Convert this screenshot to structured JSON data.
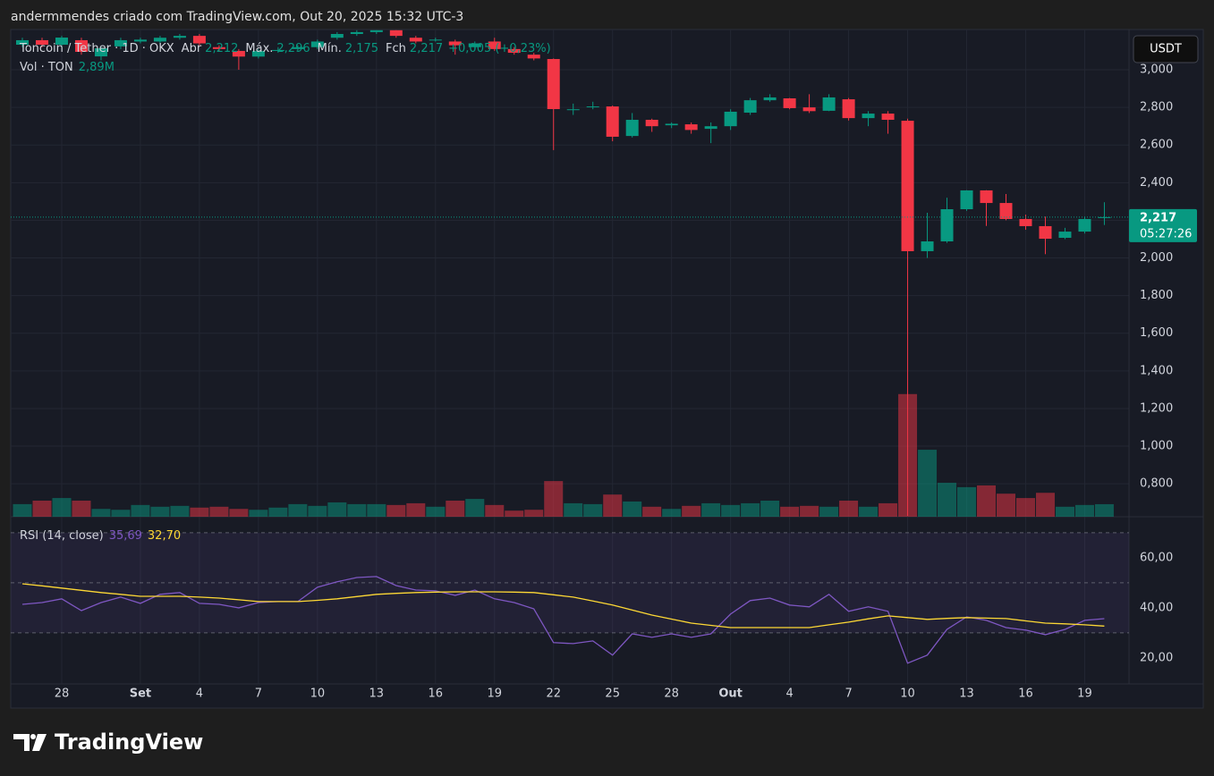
{
  "header": {
    "text": "andermmendes criado com TradingView.com, Out 20, 2025 15:32 UTC-3"
  },
  "footer": {
    "brand": "TradingView"
  },
  "chart_data": [
    {
      "type": "candlestick",
      "legend": {
        "symbol": "Toncoin / Tether · 1D · OKX",
        "open_label": "Abr",
        "open": "2,212",
        "high_label": "Máx.",
        "high": "2,296",
        "low_label": "Mín.",
        "low": "2,175",
        "close_label": "Fch",
        "close": "2,217",
        "change": "+0,005 (+0,23%)"
      },
      "currency": "USDT",
      "up_color": "#089981",
      "down_color": "#f23645",
      "grid": true,
      "categories": [
        null,
        null,
        "28",
        null,
        null,
        null,
        "Set",
        null,
        null,
        "4",
        null,
        null,
        "7",
        null,
        null,
        "10",
        null,
        null,
        "13",
        null,
        null,
        "16",
        null,
        null,
        "19",
        null,
        null,
        "22",
        null,
        null,
        "25",
        null,
        null,
        "28",
        null,
        null,
        "Out",
        null,
        null,
        "4",
        null,
        null,
        "7",
        null,
        null,
        "10",
        null,
        null,
        "13",
        null,
        null,
        "16",
        null,
        null,
        "19",
        null
      ],
      "open": [
        3.133,
        3.157,
        3.133,
        3.157,
        3.071,
        3.124,
        3.15,
        3.15,
        3.17,
        3.18,
        3.12,
        3.1,
        3.07,
        3.1,
        3.11,
        3.12,
        3.17,
        3.19,
        3.2,
        3.21,
        3.17,
        3.16,
        3.15,
        3.12,
        3.15,
        3.11,
        3.08,
        3.057,
        2.79,
        2.805,
        2.805,
        2.648,
        2.734,
        2.705,
        2.71,
        2.686,
        2.7,
        2.772,
        2.838,
        2.848,
        2.8,
        2.782,
        2.843,
        2.743,
        2.767,
        2.729,
        2.036,
        2.088,
        2.259,
        2.359,
        2.292,
        2.207,
        2.169,
        2.107,
        2.14,
        2.212
      ],
      "high": [
        3.17,
        3.17,
        3.18,
        3.17,
        3.12,
        3.17,
        3.17,
        3.18,
        3.19,
        3.19,
        3.13,
        3.11,
        3.11,
        3.12,
        3.13,
        3.16,
        3.2,
        3.21,
        3.21,
        3.21,
        3.18,
        3.17,
        3.16,
        3.15,
        3.17,
        3.12,
        3.09,
        3.06,
        2.82,
        2.83,
        2.81,
        2.77,
        2.74,
        2.72,
        2.72,
        2.72,
        2.79,
        2.85,
        2.87,
        2.85,
        2.87,
        2.87,
        2.85,
        2.78,
        2.78,
        2.74,
        2.24,
        2.32,
        2.36,
        2.36,
        2.34,
        2.23,
        2.22,
        2.16,
        2.22,
        2.296
      ],
      "low": [
        3.12,
        3.12,
        3.12,
        3.08,
        3.05,
        3.11,
        3.14,
        3.14,
        3.16,
        3.13,
        3.1,
        3.0,
        3.06,
        3.09,
        3.1,
        3.11,
        3.16,
        3.18,
        3.19,
        3.17,
        3.14,
        3.15,
        3.08,
        3.11,
        3.1,
        3.08,
        3.05,
        2.573,
        2.76,
        2.79,
        2.62,
        2.64,
        2.67,
        2.69,
        2.66,
        2.61,
        2.68,
        2.76,
        2.83,
        2.79,
        2.77,
        2.78,
        2.73,
        2.7,
        2.66,
        0.63,
        2.0,
        2.08,
        2.25,
        2.17,
        2.2,
        2.15,
        2.02,
        2.1,
        2.13,
        2.175
      ],
      "close": [
        3.157,
        3.133,
        3.171,
        3.095,
        3.114,
        3.157,
        3.16,
        3.17,
        3.18,
        3.14,
        3.11,
        3.07,
        3.1,
        3.105,
        3.12,
        3.15,
        3.19,
        3.2,
        3.21,
        3.18,
        3.15,
        3.16,
        3.13,
        3.14,
        3.11,
        3.09,
        3.06,
        2.791,
        2.79,
        2.805,
        2.644,
        2.734,
        2.7,
        2.713,
        2.68,
        2.7,
        2.777,
        2.838,
        2.853,
        2.796,
        2.78,
        2.853,
        2.743,
        2.767,
        2.734,
        2.036,
        2.088,
        2.259,
        2.359,
        2.292,
        2.207,
        2.169,
        2.102,
        2.14,
        2.207,
        2.217
      ],
      "ylim": [
        0.625,
        3.2138
      ],
      "yticks": [
        {
          "value": 3.0,
          "label": "3,000"
        },
        {
          "value": 2.8,
          "label": "2,800"
        },
        {
          "value": 2.6,
          "label": "2,600"
        },
        {
          "value": 2.4,
          "label": "2,400"
        },
        {
          "value": 2.2,
          "label": "2,200"
        },
        {
          "value": 2.0,
          "label": "2,000"
        },
        {
          "value": 1.8,
          "label": "1,800"
        },
        {
          "value": 1.6,
          "label": "1,600"
        },
        {
          "value": 1.4,
          "label": "1,400"
        },
        {
          "value": 1.2,
          "label": "1,200"
        },
        {
          "value": 1.0,
          "label": "1,000"
        },
        {
          "value": 0.8,
          "label": "0,800"
        }
      ],
      "last_price": {
        "value": 2.217,
        "label": "2,217"
      },
      "countdown": "05:27:26",
      "volume": {
        "name": "Vol · TON",
        "last_label": "2,89M",
        "ylim": [
          0,
          112
        ],
        "values": [
          2.9,
          3.7,
          4.3,
          3.7,
          1.8,
          1.6,
          2.7,
          2.3,
          2.5,
          2.1,
          2.3,
          1.8,
          1.6,
          2.1,
          2.9,
          2.5,
          3.3,
          2.9,
          2.9,
          2.7,
          3.1,
          2.3,
          3.7,
          4.1,
          2.7,
          1.4,
          1.6,
          8.2,
          3.1,
          2.9,
          5.1,
          3.5,
          2.3,
          1.8,
          2.5,
          3.1,
          2.7,
          3.1,
          3.7,
          2.3,
          2.5,
          2.3,
          3.7,
          2.3,
          3.1,
          28.2,
          15.4,
          7.8,
          6.8,
          7.2,
          5.3,
          4.3,
          5.5,
          2.3,
          2.7,
          2.89
        ]
      }
    },
    {
      "type": "line",
      "title": "RSI (14, close)",
      "ylim": [
        9.6,
        76.4
      ],
      "yticks": [
        {
          "value": 60,
          "label": "60,00"
        },
        {
          "value": 40,
          "label": "40,00"
        },
        {
          "value": 20,
          "label": "20,00"
        }
      ],
      "levels": [
        70,
        50,
        30
      ],
      "series": [
        {
          "color": "#7e57c2",
          "last_label": "35,69",
          "values": [
            41.4,
            42.1,
            43.6,
            38.9,
            42.1,
            44.3,
            41.8,
            45.4,
            46.1,
            41.8,
            41.4,
            40.0,
            42.1,
            42.5,
            42.5,
            48.2,
            50.4,
            52.1,
            52.5,
            48.9,
            47.1,
            46.8,
            45.0,
            47.1,
            43.6,
            42.1,
            39.6,
            26.1,
            25.7,
            26.8,
            21.1,
            29.6,
            28.2,
            29.6,
            28.2,
            29.6,
            37.5,
            42.9,
            43.9,
            41.1,
            40.4,
            45.4,
            38.6,
            40.4,
            38.6,
            17.9,
            21.1,
            31.4,
            36.4,
            35.0,
            32.1,
            31.1,
            29.3,
            31.4,
            35.0,
            35.69
          ]
        },
        {
          "color": "#fdd835",
          "last_label": "32,70",
          "values": [
            49.6,
            48.8,
            47.9,
            47.0,
            46.1,
            45.4,
            44.6,
            44.6,
            44.6,
            44.3,
            43.9,
            43.2,
            42.5,
            42.5,
            42.5,
            43.0,
            43.6,
            44.5,
            45.4,
            45.8,
            46.1,
            46.3,
            46.4,
            46.4,
            46.4,
            46.3,
            46.1,
            45.2,
            44.3,
            42.7,
            41.1,
            39.1,
            37.1,
            35.5,
            33.9,
            33.0,
            32.1,
            32.1,
            32.1,
            32.1,
            32.1,
            33.2,
            34.3,
            35.6,
            36.8,
            36.1,
            35.4,
            35.8,
            36.1,
            35.9,
            35.7,
            34.8,
            33.9,
            33.6,
            33.2,
            32.7
          ]
        }
      ]
    }
  ]
}
